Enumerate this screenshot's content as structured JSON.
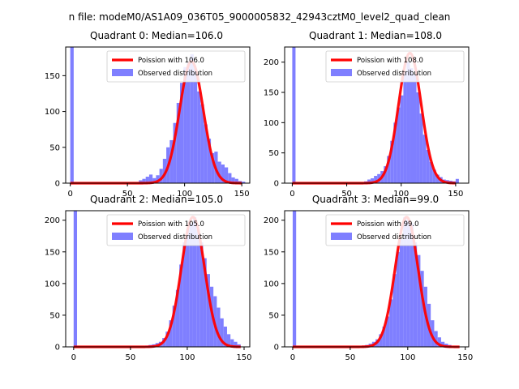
{
  "figure": {
    "suptitle": "n file: modeM0/AS1A09_036T05_9000005832_42943cztM0_level2_quad_clean"
  },
  "colors": {
    "bar": "#7f7fff",
    "line": "#ff0000",
    "axes": "#000000",
    "background": "#ffffff"
  },
  "chart_data": [
    {
      "type": "bar",
      "title": "Quadrant 0: Median=106.0",
      "xlim": [
        -4,
        157
      ],
      "ylim": [
        0,
        190
      ],
      "xticks": [
        0,
        50,
        100,
        150
      ],
      "yticks": [
        0,
        50,
        100,
        150
      ],
      "legend": {
        "placement": "top-right",
        "line_label": "Poission with 106.0",
        "bar_label": "Observed distribution"
      },
      "histogram": {
        "bin_width": 3,
        "bins": [
          {
            "x": 0,
            "y": 190
          },
          {
            "x": 60,
            "y": 4
          },
          {
            "x": 63,
            "y": 6
          },
          {
            "x": 66,
            "y": 9
          },
          {
            "x": 69,
            "y": 12
          },
          {
            "x": 72,
            "y": 7
          },
          {
            "x": 75,
            "y": 11
          },
          {
            "x": 78,
            "y": 20
          },
          {
            "x": 81,
            "y": 34
          },
          {
            "x": 84,
            "y": 50
          },
          {
            "x": 87,
            "y": 60
          },
          {
            "x": 90,
            "y": 84
          },
          {
            "x": 93,
            "y": 112
          },
          {
            "x": 96,
            "y": 140
          },
          {
            "x": 99,
            "y": 162
          },
          {
            "x": 102,
            "y": 168
          },
          {
            "x": 105,
            "y": 180
          },
          {
            "x": 108,
            "y": 160
          },
          {
            "x": 111,
            "y": 128
          },
          {
            "x": 114,
            "y": 110
          },
          {
            "x": 117,
            "y": 82
          },
          {
            "x": 120,
            "y": 62
          },
          {
            "x": 123,
            "y": 42
          },
          {
            "x": 126,
            "y": 44
          },
          {
            "x": 129,
            "y": 30
          },
          {
            "x": 132,
            "y": 26
          },
          {
            "x": 135,
            "y": 22
          },
          {
            "x": 138,
            "y": 14
          },
          {
            "x": 141,
            "y": 8
          },
          {
            "x": 144,
            "y": 6
          },
          {
            "x": 147,
            "y": 3
          },
          {
            "x": 150,
            "y": 2
          }
        ]
      },
      "poisson": {
        "mean": 106.0,
        "peak": 170,
        "x_range": [
          0,
          150
        ]
      }
    },
    {
      "type": "bar",
      "title": "Quadrant 1: Median=108.0",
      "xlim": [
        -7,
        162
      ],
      "ylim": [
        0,
        225
      ],
      "xticks": [
        0,
        50,
        100,
        150
      ],
      "yticks": [
        0,
        50,
        100,
        150,
        200
      ],
      "legend": {
        "placement": "top-right",
        "line_label": "Poission with 108.0",
        "bar_label": "Observed distribution"
      },
      "histogram": {
        "bin_width": 3,
        "bins": [
          {
            "x": 0,
            "y": 225
          },
          {
            "x": 66,
            "y": 3
          },
          {
            "x": 69,
            "y": 6
          },
          {
            "x": 72,
            "y": 8
          },
          {
            "x": 75,
            "y": 12
          },
          {
            "x": 78,
            "y": 15
          },
          {
            "x": 81,
            "y": 20
          },
          {
            "x": 84,
            "y": 28
          },
          {
            "x": 87,
            "y": 45
          },
          {
            "x": 90,
            "y": 70
          },
          {
            "x": 93,
            "y": 100
          },
          {
            "x": 96,
            "y": 125
          },
          {
            "x": 99,
            "y": 145
          },
          {
            "x": 102,
            "y": 185
          },
          {
            "x": 105,
            "y": 200
          },
          {
            "x": 108,
            "y": 190
          },
          {
            "x": 111,
            "y": 180
          },
          {
            "x": 114,
            "y": 150
          },
          {
            "x": 117,
            "y": 115
          },
          {
            "x": 120,
            "y": 80
          },
          {
            "x": 123,
            "y": 55
          },
          {
            "x": 126,
            "y": 35
          },
          {
            "x": 129,
            "y": 22
          },
          {
            "x": 132,
            "y": 14
          },
          {
            "x": 135,
            "y": 10
          },
          {
            "x": 138,
            "y": 6
          },
          {
            "x": 141,
            "y": 5
          },
          {
            "x": 144,
            "y": 4
          },
          {
            "x": 147,
            "y": 3
          },
          {
            "x": 150,
            "y": 7
          }
        ]
      },
      "poisson": {
        "mean": 108.0,
        "peak": 215,
        "x_range": [
          0,
          150
        ]
      }
    },
    {
      "type": "bar",
      "title": "Quadrant 2: Median=105.0",
      "xlim": [
        -7,
        155
      ],
      "ylim": [
        0,
        215
      ],
      "xticks": [
        0,
        50,
        100,
        150
      ],
      "yticks": [
        0,
        50,
        100,
        150,
        200
      ],
      "legend": {
        "placement": "top-right",
        "line_label": "Poission with 105.0",
        "bar_label": "Observed distribution"
      },
      "histogram": {
        "bin_width": 3,
        "bins": [
          {
            "x": 0,
            "y": 215
          },
          {
            "x": 63,
            "y": 2
          },
          {
            "x": 66,
            "y": 3
          },
          {
            "x": 69,
            "y": 4
          },
          {
            "x": 72,
            "y": 6
          },
          {
            "x": 75,
            "y": 8
          },
          {
            "x": 78,
            "y": 14
          },
          {
            "x": 81,
            "y": 24
          },
          {
            "x": 84,
            "y": 42
          },
          {
            "x": 87,
            "y": 65
          },
          {
            "x": 90,
            "y": 90
          },
          {
            "x": 93,
            "y": 130
          },
          {
            "x": 96,
            "y": 165
          },
          {
            "x": 99,
            "y": 185
          },
          {
            "x": 102,
            "y": 195
          },
          {
            "x": 105,
            "y": 205
          },
          {
            "x": 108,
            "y": 185
          },
          {
            "x": 111,
            "y": 165
          },
          {
            "x": 114,
            "y": 140
          },
          {
            "x": 117,
            "y": 115
          },
          {
            "x": 120,
            "y": 95
          },
          {
            "x": 123,
            "y": 80
          },
          {
            "x": 126,
            "y": 62
          },
          {
            "x": 129,
            "y": 45
          },
          {
            "x": 132,
            "y": 32
          },
          {
            "x": 135,
            "y": 20
          },
          {
            "x": 138,
            "y": 12
          },
          {
            "x": 141,
            "y": 8
          },
          {
            "x": 144,
            "y": 4
          }
        ]
      },
      "poisson": {
        "mean": 105.0,
        "peak": 205,
        "x_range": [
          0,
          147
        ]
      }
    },
    {
      "type": "bar",
      "title": "Quadrant 3: Median=99.0",
      "xlim": [
        -7,
        153
      ],
      "ylim": [
        0,
        215
      ],
      "xticks": [
        0,
        50,
        100,
        150
      ],
      "yticks": [
        0,
        50,
        100,
        150,
        200
      ],
      "legend": {
        "placement": "top-right",
        "line_label": "Poission with 99.0",
        "bar_label": "Observed distribution"
      },
      "histogram": {
        "bin_width": 3,
        "bins": [
          {
            "x": 0,
            "y": 215
          },
          {
            "x": 60,
            "y": 2
          },
          {
            "x": 63,
            "y": 3
          },
          {
            "x": 66,
            "y": 5
          },
          {
            "x": 69,
            "y": 8
          },
          {
            "x": 72,
            "y": 12
          },
          {
            "x": 75,
            "y": 20
          },
          {
            "x": 78,
            "y": 32
          },
          {
            "x": 81,
            "y": 48
          },
          {
            "x": 84,
            "y": 75
          },
          {
            "x": 87,
            "y": 115
          },
          {
            "x": 90,
            "y": 150
          },
          {
            "x": 93,
            "y": 170
          },
          {
            "x": 96,
            "y": 205
          },
          {
            "x": 99,
            "y": 200
          },
          {
            "x": 102,
            "y": 195
          },
          {
            "x": 105,
            "y": 165
          },
          {
            "x": 108,
            "y": 145
          },
          {
            "x": 111,
            "y": 120
          },
          {
            "x": 114,
            "y": 95
          },
          {
            "x": 117,
            "y": 68
          },
          {
            "x": 120,
            "y": 42
          },
          {
            "x": 123,
            "y": 25
          },
          {
            "x": 126,
            "y": 15
          },
          {
            "x": 129,
            "y": 8
          },
          {
            "x": 132,
            "y": 5
          },
          {
            "x": 135,
            "y": 3
          }
        ]
      },
      "poisson": {
        "mean": 99.0,
        "peak": 205,
        "x_range": [
          0,
          145
        ]
      }
    }
  ]
}
